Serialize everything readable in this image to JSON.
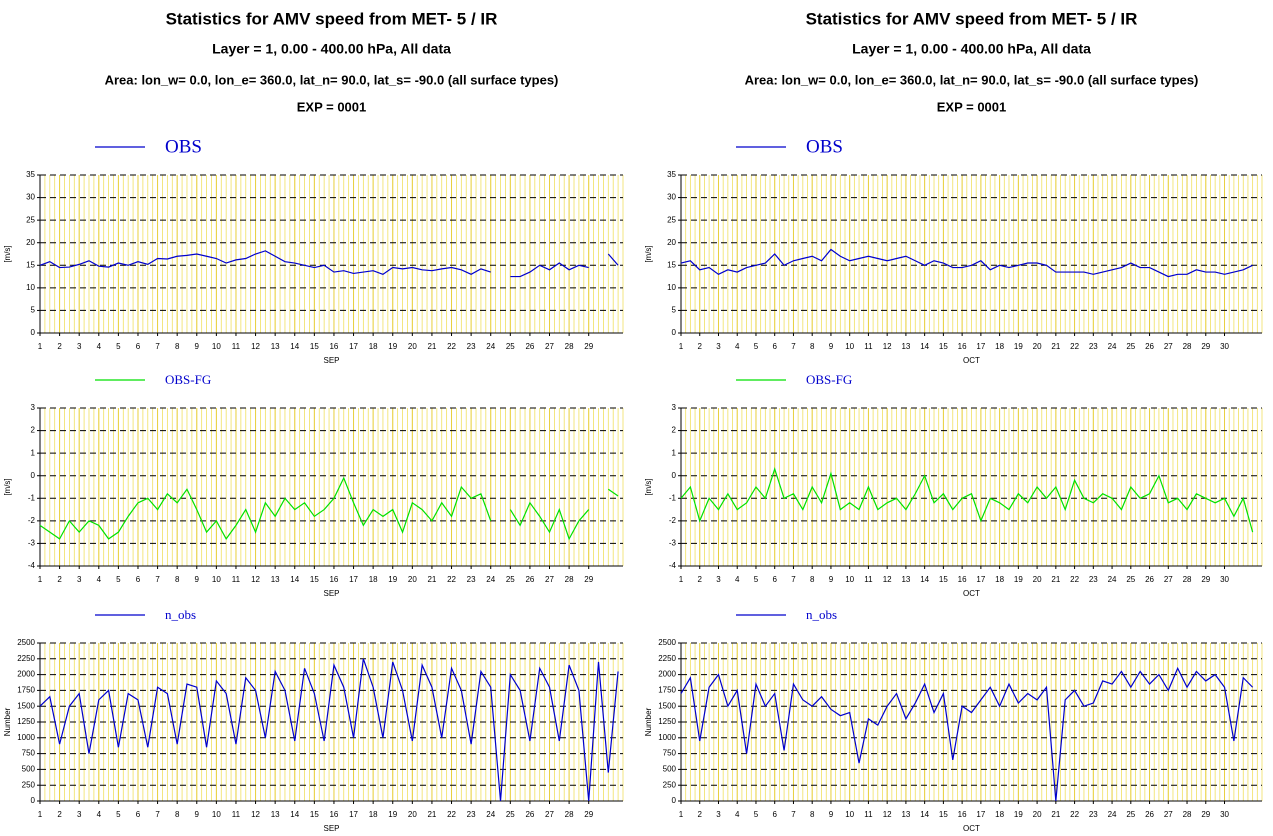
{
  "chart_data": [
    {
      "type": "line",
      "title": "Statistics for AMV speed from  MET- 5 / IR",
      "subtitle": "Layer =  1, 0.00 - 400.00 hPa, All data",
      "area": "Area: lon_w=   0.0, lon_e= 360.0, lat_n=  90.0, lat_s= -90.0 (all surface types)",
      "exp": "EXP = 0001",
      "xlabel": "SEP",
      "xlim": [
        1,
        30.75
      ],
      "xticks": [
        1,
        2,
        3,
        4,
        5,
        6,
        7,
        8,
        9,
        10,
        11,
        12,
        13,
        14,
        15,
        16,
        17,
        18,
        19,
        20,
        21,
        22,
        23,
        24,
        25,
        26,
        27,
        28,
        29
      ],
      "grid": true,
      "x": [
        1,
        1.5,
        2,
        2.5,
        3,
        3.5,
        4,
        4.5,
        5,
        5.5,
        6,
        6.5,
        7,
        7.5,
        8,
        8.5,
        9,
        9.5,
        10,
        10.5,
        11,
        11.5,
        12,
        12.5,
        13,
        13.5,
        14,
        14.5,
        15,
        15.5,
        16,
        16.5,
        17,
        17.5,
        18,
        18.5,
        19,
        19.5,
        20,
        20.5,
        21,
        21.5,
        22,
        22.5,
        23,
        23.5,
        24,
        24.5,
        25,
        25.5,
        26,
        26.5,
        27,
        27.5,
        28,
        28.5,
        29,
        29.5,
        30,
        30.5
      ],
      "panels": [
        {
          "ylabel": "[m/s]",
          "ylim": [
            0,
            35
          ],
          "yticks": [
            0,
            5,
            10,
            15,
            20,
            25,
            30,
            35
          ],
          "series": [
            {
              "name": "OBS",
              "color": "#0000cc",
              "values": [
                15,
                15.8,
                14.5,
                14.6,
                15.2,
                16.0,
                14.8,
                14.6,
                15.5,
                15.0,
                15.8,
                15.2,
                16.5,
                16.4,
                17.0,
                17.2,
                17.5,
                17.0,
                16.5,
                15.5,
                16.2,
                16.5,
                17.5,
                18.2,
                17.0,
                15.8,
                15.5,
                15.0,
                14.5,
                15.0,
                13.5,
                13.8,
                13.2,
                13.5,
                13.8,
                13.0,
                14.5,
                14.2,
                14.5,
                14.0,
                13.8,
                14.2,
                14.5,
                14.0,
                13.0,
                14.2,
                13.5,
                null,
                12.5,
                12.5,
                13.5,
                15.0,
                14.0,
                15.5,
                14.0,
                15.0,
                14.5,
                null,
                17.5,
                15.0
              ]
            }
          ]
        },
        {
          "ylabel": "[m/s]",
          "ylim": [
            -4,
            3
          ],
          "yticks": [
            -4,
            -3,
            -2,
            -1,
            0,
            1,
            2,
            3
          ],
          "series": [
            {
              "name": "OBS-FG",
              "color": "#00e000",
              "values": [
                -2.2,
                -2.5,
                -2.8,
                -2.0,
                -2.5,
                -2.0,
                -2.2,
                -2.8,
                -2.5,
                -1.8,
                -1.2,
                -1.0,
                -1.5,
                -0.8,
                -1.2,
                -0.6,
                -1.5,
                -2.5,
                -2.0,
                -2.8,
                -2.2,
                -1.5,
                -2.5,
                -1.2,
                -1.8,
                -1.0,
                -1.5,
                -1.2,
                -1.8,
                -1.5,
                -1.0,
                -0.1,
                -1.2,
                -2.2,
                -1.5,
                -1.8,
                -1.5,
                -2.5,
                -1.2,
                -1.5,
                -2.0,
                -1.2,
                -1.8,
                -0.5,
                -1.0,
                -0.8,
                -2.0,
                null,
                -1.5,
                -2.2,
                -1.2,
                -1.8,
                -2.5,
                -1.5,
                -2.8,
                -2.0,
                -1.5,
                null,
                -0.6,
                -0.9
              ]
            }
          ]
        },
        {
          "ylabel": "Number",
          "ylim": [
            0,
            2500
          ],
          "yticks": [
            0,
            250,
            500,
            750,
            1000,
            1250,
            1500,
            1750,
            2000,
            2250,
            2500
          ],
          "series": [
            {
              "name": "n_obs",
              "color": "#0000cc",
              "values": [
                1500,
                1650,
                900,
                1500,
                1700,
                750,
                1600,
                1750,
                850,
                1700,
                1600,
                850,
                1800,
                1700,
                900,
                1850,
                1800,
                850,
                1900,
                1700,
                900,
                1950,
                1750,
                1000,
                2050,
                1750,
                950,
                2100,
                1700,
                950,
                2150,
                1800,
                1000,
                2250,
                1800,
                1000,
                2200,
                1750,
                950,
                2150,
                1800,
                1000,
                2100,
                1750,
                900,
                2050,
                1800,
                0,
                2000,
                1750,
                950,
                2100,
                1800,
                950,
                2150,
                1750,
                0,
                2200,
                450,
                2050
              ]
            }
          ]
        }
      ]
    },
    {
      "type": "line",
      "title": "Statistics for AMV speed from  MET- 5 / IR",
      "subtitle": "Layer =  1, 0.00 - 400.00 hPa, All data",
      "area": "Area: lon_w=   0.0, lon_e= 360.0, lat_n=  90.0, lat_s= -90.0 (all surface types)",
      "exp": "EXP = 0001",
      "xlabel": "OCT",
      "xlim": [
        1,
        32
      ],
      "xticks": [
        1,
        2,
        3,
        4,
        5,
        6,
        7,
        8,
        9,
        10,
        11,
        12,
        13,
        14,
        15,
        16,
        17,
        18,
        19,
        20,
        21,
        22,
        23,
        24,
        25,
        26,
        27,
        28,
        29,
        30
      ],
      "grid": true,
      "x": [
        1,
        1.5,
        2,
        2.5,
        3,
        3.5,
        4,
        4.5,
        5,
        5.5,
        6,
        6.5,
        7,
        7.5,
        8,
        8.5,
        9,
        9.5,
        10,
        10.5,
        11,
        11.5,
        12,
        12.5,
        13,
        13.5,
        14,
        14.5,
        15,
        15.5,
        16,
        16.5,
        17,
        17.5,
        18,
        18.5,
        19,
        19.5,
        20,
        20.5,
        21,
        21.5,
        22,
        22.5,
        23,
        23.5,
        24,
        24.5,
        25,
        25.5,
        26,
        26.5,
        27,
        27.5,
        28,
        28.5,
        29,
        29.5,
        30,
        30.5,
        31,
        31.5
      ],
      "panels": [
        {
          "ylabel": "[m/s]",
          "ylim": [
            0,
            35
          ],
          "yticks": [
            0,
            5,
            10,
            15,
            20,
            25,
            30,
            35
          ],
          "series": [
            {
              "name": "OBS",
              "color": "#0000cc",
              "values": [
                15.5,
                16,
                14,
                14.5,
                13,
                14,
                13.5,
                14.5,
                15,
                15.5,
                17.5,
                15,
                16,
                16.5,
                17,
                16,
                18.5,
                17,
                16,
                16.5,
                17,
                16.5,
                16,
                16.5,
                17,
                16,
                15,
                16,
                15.5,
                14.5,
                14.5,
                15,
                16,
                14,
                15,
                14.5,
                15,
                15.5,
                15.5,
                15,
                13.5,
                13.5,
                13.5,
                13.5,
                13,
                13.5,
                14,
                14.5,
                15.5,
                14.5,
                14.5,
                13.5,
                12.5,
                13,
                13,
                14,
                13.5,
                13.5,
                13,
                13.5,
                14,
                15
              ]
            }
          ]
        },
        {
          "ylabel": "[m/s]",
          "ylim": [
            -4,
            3
          ],
          "yticks": [
            -4,
            -3,
            -2,
            -1,
            0,
            1,
            2,
            3
          ],
          "series": [
            {
              "name": "OBS-FG",
              "color": "#00e000",
              "values": [
                -1.0,
                -0.5,
                -2.0,
                -1.0,
                -1.5,
                -0.8,
                -1.5,
                -1.2,
                -0.5,
                -1.0,
                0.3,
                -1.0,
                -0.8,
                -1.5,
                -0.5,
                -1.2,
                0.1,
                -1.5,
                -1.2,
                -1.5,
                -0.5,
                -1.5,
                -1.2,
                -1.0,
                -1.5,
                -0.8,
                0.0,
                -1.2,
                -0.8,
                -1.5,
                -1.0,
                -0.8,
                -2.0,
                -1.0,
                -1.2,
                -1.5,
                -0.8,
                -1.2,
                -0.5,
                -1.0,
                -0.5,
                -1.5,
                -0.2,
                -1.0,
                -1.2,
                -0.8,
                -1.0,
                -1.5,
                -0.5,
                -1.0,
                -0.8,
                0.0,
                -1.2,
                -1.0,
                -1.5,
                -0.8,
                -1.0,
                -1.2,
                -1.0,
                -1.8,
                -1.0,
                -2.5
              ]
            }
          ]
        },
        {
          "ylabel": "Number",
          "ylim": [
            0,
            2500
          ],
          "yticks": [
            0,
            250,
            500,
            750,
            1000,
            1250,
            1500,
            1750,
            2000,
            2250,
            2500
          ],
          "series": [
            {
              "name": "n_obs",
              "color": "#0000cc",
              "values": [
                1700,
                1950,
                950,
                1800,
                2000,
                1500,
                1750,
                750,
                1850,
                1500,
                1700,
                800,
                1850,
                1600,
                1500,
                1650,
                1450,
                1350,
                1400,
                600,
                1300,
                1200,
                1500,
                1700,
                1300,
                1550,
                1850,
                1400,
                1700,
                650,
                1500,
                1400,
                1600,
                1800,
                1500,
                1850,
                1550,
                1700,
                1600,
                1800,
                0,
                1600,
                1750,
                1500,
                1550,
                1900,
                1850,
                2050,
                1800,
                2050,
                1850,
                2000,
                1750,
                2100,
                1800,
                2050,
                1900,
                2000,
                1800,
                950,
                1950,
                1800
              ]
            }
          ]
        }
      ]
    }
  ]
}
